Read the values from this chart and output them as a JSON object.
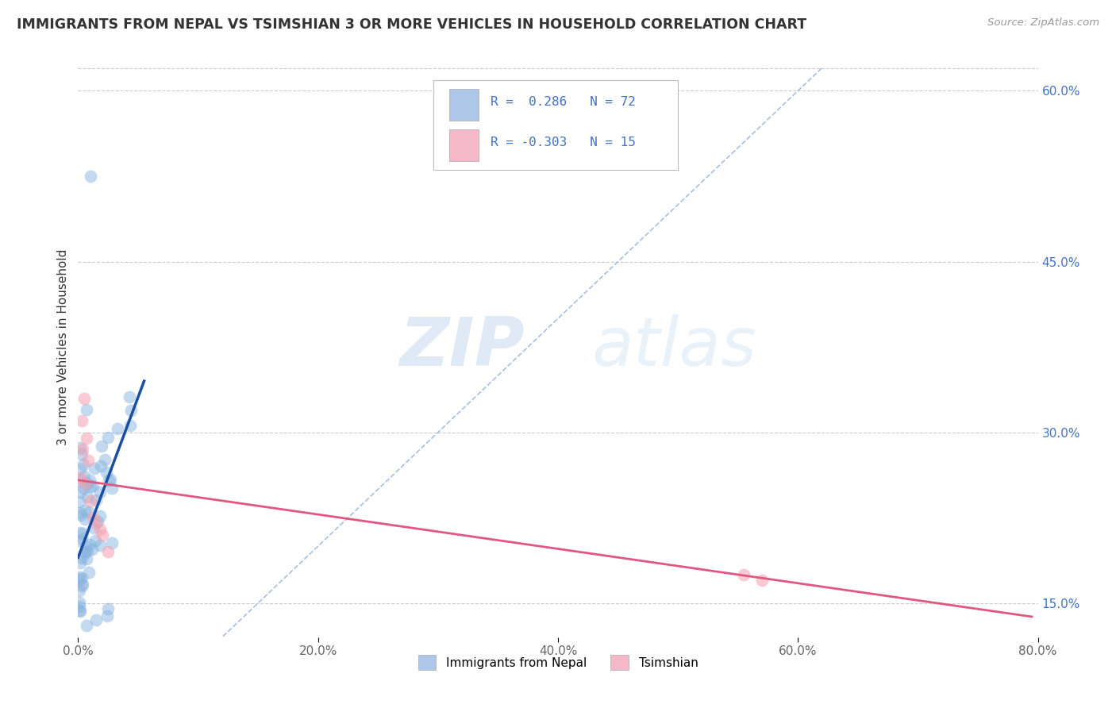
{
  "title": "IMMIGRANTS FROM NEPAL VS TSIMSHIAN 3 OR MORE VEHICLES IN HOUSEHOLD CORRELATION CHART",
  "source_text": "Source: ZipAtlas.com",
  "ylabel": "3 or more Vehicles in Household",
  "xlim": [
    0.0,
    0.8
  ],
  "ylim": [
    0.12,
    0.63
  ],
  "xticks": [
    0.0,
    0.2,
    0.4,
    0.6,
    0.8
  ],
  "yticks_right": [
    0.15,
    0.3,
    0.45,
    0.6
  ],
  "background_color": "#ffffff",
  "grid_color": "#cccccc",
  "watermark_zip": "ZIP",
  "watermark_atlas": "atlas",
  "legend_text1": "R =  0.286   N = 72",
  "legend_text2": "R = -0.303   N = 15",
  "blue_scatter_color": "#88b4e0",
  "pink_scatter_color": "#f5a0b0",
  "trend_blue_color": "#1a4fa0",
  "trend_pink_color": "#e05880",
  "ref_line_color": "#a0b8d8",
  "seed": 42
}
